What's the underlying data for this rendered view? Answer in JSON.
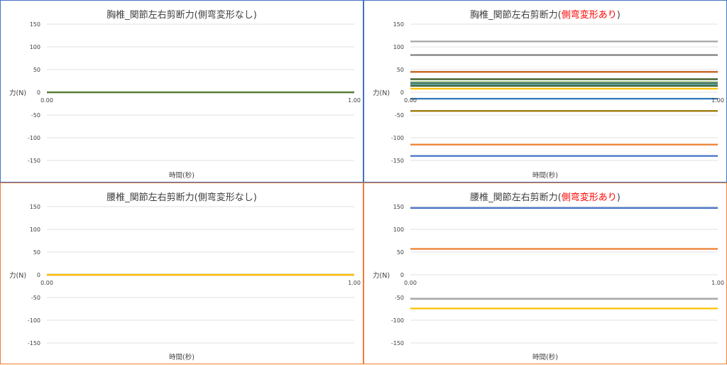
{
  "chart_data": [
    {
      "type": "line",
      "title": "胸椎_関節左右剪断力(側弯変形なし)",
      "title_prefix": "胸椎_関節左右剪断力",
      "title_paren_open": "(",
      "title_highlight": "側弯変形なし",
      "title_paren_close": ")",
      "highlight_color": "#404040",
      "border_color": "#4472c4",
      "xlabel": "時間(秒)",
      "ylabel": "力(N)",
      "xlim": [
        0,
        1
      ],
      "ylim": [
        -150,
        150
      ],
      "yticks": [
        "150",
        "100",
        "50",
        "0",
        "-50",
        "-100",
        "-150"
      ],
      "ytick_values": [
        150,
        100,
        50,
        0,
        -50,
        -100,
        -150
      ],
      "xticks": [
        "0.00",
        "1.00"
      ],
      "grid": true,
      "series": [
        {
          "color": "#4472c4",
          "x": [
            0,
            1
          ],
          "values": [
            0,
            0
          ]
        },
        {
          "color": "#ed7d31",
          "x": [
            0,
            1
          ],
          "values": [
            0,
            0
          ]
        },
        {
          "color": "#548235",
          "x": [
            0,
            1
          ],
          "values": [
            0,
            0
          ]
        }
      ]
    },
    {
      "type": "line",
      "title": "胸椎_関節左右剪断力(側弯変形あり)",
      "title_prefix": "胸椎_関節左右剪断力",
      "title_paren_open": "(",
      "title_highlight": "側弯変形あり",
      "title_paren_close": ")",
      "highlight_color": "#ff0000",
      "border_color": "#4472c4",
      "xlabel": "時間(秒)",
      "ylabel": "力(N)",
      "xlim": [
        0,
        1
      ],
      "ylim": [
        -150,
        150
      ],
      "yticks": [
        "150",
        "100",
        "50",
        "0",
        "-50",
        "-100",
        "-150"
      ],
      "ytick_values": [
        150,
        100,
        50,
        0,
        -50,
        -100,
        -150
      ],
      "xticks": [
        "0.00",
        "1.00"
      ],
      "grid": true,
      "series": [
        {
          "color": "#a5a5a5",
          "x": [
            0,
            1
          ],
          "values": [
            112,
            112
          ]
        },
        {
          "color": "#7f7f7f",
          "x": [
            0,
            1
          ],
          "values": [
            82,
            82
          ]
        },
        {
          "color": "#c55a11",
          "x": [
            0,
            1
          ],
          "values": [
            45,
            45
          ]
        },
        {
          "color": "#375623",
          "x": [
            0,
            1
          ],
          "values": [
            29,
            29
          ]
        },
        {
          "color": "#a9d18e",
          "x": [
            0,
            1
          ],
          "values": [
            23,
            23
          ]
        },
        {
          "color": "#264478",
          "x": [
            0,
            1
          ],
          "values": [
            20,
            20
          ]
        },
        {
          "color": "#70ad47",
          "x": [
            0,
            1
          ],
          "values": [
            18,
            18
          ]
        },
        {
          "color": "#5b9bd5",
          "x": [
            0,
            1
          ],
          "values": [
            16,
            16
          ]
        },
        {
          "color": "#43682b",
          "x": [
            0,
            1
          ],
          "values": [
            14,
            14
          ]
        },
        {
          "color": "#ffc000",
          "x": [
            0,
            1
          ],
          "values": [
            8,
            8
          ]
        },
        {
          "color": "#2e75b6",
          "x": [
            0,
            1
          ],
          "values": [
            -14,
            -14
          ]
        },
        {
          "color": "#997300",
          "x": [
            0,
            1
          ],
          "values": [
            -41,
            -41
          ]
        },
        {
          "color": "#ed7d31",
          "x": [
            0,
            1
          ],
          "values": [
            -115,
            -115
          ]
        },
        {
          "color": "#4472c4",
          "x": [
            0,
            1
          ],
          "values": [
            -140,
            -140
          ]
        }
      ]
    },
    {
      "type": "line",
      "title": "腰椎_関節左右剪断力(側弯変形なし)",
      "title_prefix": "腰椎_関節左右剪断力",
      "title_paren_open": "(",
      "title_highlight": "側弯変形なし",
      "title_paren_close": ")",
      "highlight_color": "#404040",
      "border_color": "#ed7d31",
      "xlabel": "時間(秒)",
      "ylabel": "力(N)",
      "xlim": [
        0,
        1
      ],
      "ylim": [
        -150,
        150
      ],
      "yticks": [
        "150",
        "100",
        "50",
        "0",
        "-50",
        "-100",
        "-150"
      ],
      "ytick_values": [
        150,
        100,
        50,
        0,
        -50,
        -100,
        -150
      ],
      "xticks": [
        "0.00",
        "1.00"
      ],
      "grid": true,
      "series": [
        {
          "color": "#4472c4",
          "x": [
            0,
            1
          ],
          "values": [
            0,
            0
          ]
        },
        {
          "color": "#ed7d31",
          "x": [
            0,
            1
          ],
          "values": [
            0,
            0
          ]
        },
        {
          "color": "#a5a5a5",
          "x": [
            0,
            1
          ],
          "values": [
            0,
            0
          ]
        },
        {
          "color": "#ffc000",
          "x": [
            0,
            1
          ],
          "values": [
            0,
            0
          ]
        }
      ]
    },
    {
      "type": "line",
      "title": "腰椎_関節左右剪断力(側弯変形あり)",
      "title_prefix": "腰椎_関節左右剪断力",
      "title_paren_open": "(",
      "title_highlight": "側弯変形あり",
      "title_paren_close": ")",
      "highlight_color": "#ff0000",
      "border_color": "#ed7d31",
      "xlabel": "時間(秒)",
      "ylabel": "力(N)",
      "xlim": [
        0,
        1
      ],
      "ylim": [
        -150,
        150
      ],
      "yticks": [
        "150",
        "100",
        "50",
        "0",
        "-50",
        "-100",
        "-150"
      ],
      "ytick_values": [
        150,
        100,
        50,
        0,
        -50,
        -100,
        -150
      ],
      "xticks": [
        "0.00",
        "1.00"
      ],
      "grid": true,
      "series": [
        {
          "color": "#4472c4",
          "x": [
            0,
            1
          ],
          "values": [
            147,
            147
          ]
        },
        {
          "color": "#ed7d31",
          "x": [
            0,
            1
          ],
          "values": [
            57,
            57
          ]
        },
        {
          "color": "#a5a5a5",
          "x": [
            0,
            1
          ],
          "values": [
            -53,
            -53
          ]
        },
        {
          "color": "#ffc000",
          "x": [
            0,
            1
          ],
          "values": [
            -74,
            -74
          ]
        }
      ]
    }
  ]
}
